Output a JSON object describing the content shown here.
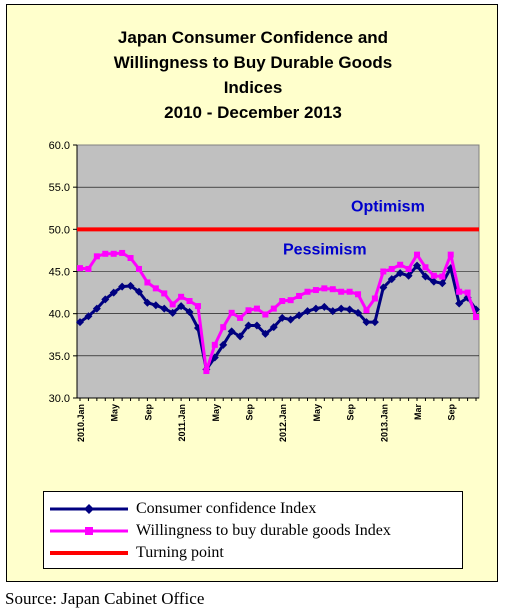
{
  "chart_data": {
    "type": "line",
    "title_lines": [
      "Japan Consumer Confidence and",
      "Willingness to Buy Durable Goods",
      "Indices",
      "2010 -  December 2013"
    ],
    "ylim": [
      30,
      60
    ],
    "y_ticks": [
      "60.0",
      "55.0",
      "50.0",
      "45.0",
      "40.0",
      "35.0",
      "30.0"
    ],
    "x_ticks": [
      {
        "index": 0,
        "label": "2010.Jan"
      },
      {
        "index": 4,
        "label": "May"
      },
      {
        "index": 8,
        "label": "Sep"
      },
      {
        "index": 12,
        "label": "2011.Jan"
      },
      {
        "index": 16,
        "label": "May"
      },
      {
        "index": 20,
        "label": "Sep"
      },
      {
        "index": 24,
        "label": "2012.Jan"
      },
      {
        "index": 28,
        "label": "May"
      },
      {
        "index": 32,
        "label": "Sep"
      },
      {
        "index": 36,
        "label": "2013.Jan"
      },
      {
        "index": 40,
        "label": "Mar"
      },
      {
        "index": 44,
        "label": "Sep"
      }
    ],
    "series": [
      {
        "name": "Consumer confidence Index",
        "color": "#000080",
        "marker": "diamond",
        "values": [
          39.0,
          39.7,
          40.6,
          41.7,
          42.5,
          43.2,
          43.3,
          42.6,
          41.3,
          41.0,
          40.6,
          40.1,
          40.9,
          40.2,
          38.3,
          33.4,
          34.8,
          36.3,
          37.9,
          37.3,
          38.6,
          38.6,
          37.6,
          38.4,
          39.5,
          39.3,
          39.8,
          40.3,
          40.6,
          40.8,
          40.3,
          40.6,
          40.5,
          40.1,
          39.0,
          39.0,
          43.1,
          44.1,
          44.8,
          44.5,
          45.7,
          44.4,
          43.8,
          43.6,
          45.4,
          41.2,
          41.9,
          40.5
        ]
      },
      {
        "name": "Willingness to buy durable goods Index",
        "color": "#ff00ff",
        "marker": "square",
        "values": [
          45.4,
          45.3,
          46.8,
          47.1,
          47.1,
          47.2,
          46.6,
          45.3,
          43.7,
          43.0,
          42.4,
          41.1,
          42.0,
          41.5,
          40.9,
          33.2,
          36.3,
          38.4,
          40.1,
          39.5,
          40.4,
          40.6,
          39.9,
          40.6,
          41.5,
          41.6,
          42.1,
          42.6,
          42.8,
          43.0,
          42.9,
          42.6,
          42.6,
          42.3,
          40.4,
          41.8,
          45.0,
          45.3,
          45.8,
          45.3,
          47.0,
          45.5,
          44.5,
          44.4,
          47.0,
          42.6,
          42.5,
          39.6
        ]
      }
    ],
    "turning_point": {
      "name": "Turning point",
      "value": 50,
      "color": "#ff0000"
    },
    "annotations": {
      "above": "Optimism",
      "below": "Pessimism",
      "color": "#0000cc"
    },
    "plot_background": "#c0c0c0",
    "frame_background": "#ffffcc",
    "grid": true,
    "legend_position": "bottom"
  },
  "source": "Source: Japan Cabinet Office"
}
